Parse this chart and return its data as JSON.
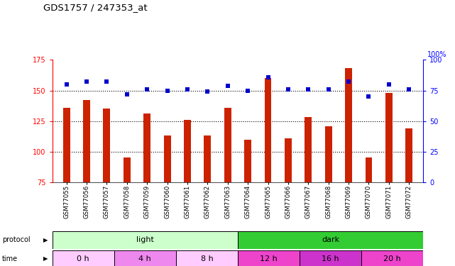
{
  "title": "GDS1757 / 247353_at",
  "samples": [
    "GSM77055",
    "GSM77056",
    "GSM77057",
    "GSM77058",
    "GSM77059",
    "GSM77060",
    "GSM77061",
    "GSM77062",
    "GSM77063",
    "GSM77064",
    "GSM77065",
    "GSM77066",
    "GSM77067",
    "GSM77068",
    "GSM77069",
    "GSM77070",
    "GSM77071",
    "GSM77072"
  ],
  "bar_values": [
    136,
    142,
    135,
    95,
    131,
    113,
    126,
    113,
    136,
    110,
    160,
    111,
    128,
    121,
    168,
    95,
    148,
    119
  ],
  "dot_values": [
    80,
    82,
    82,
    72,
    76,
    75,
    76,
    74,
    79,
    75,
    86,
    76,
    76,
    76,
    82,
    70,
    80,
    76
  ],
  "bar_color": "#cc2200",
  "dot_color": "#0000cc",
  "ymin": 75,
  "ymax": 175,
  "y2min": 0,
  "y2max": 100,
  "yticks": [
    75,
    100,
    125,
    150,
    175
  ],
  "y2ticks": [
    0,
    25,
    50,
    75,
    100
  ],
  "grid_lines": [
    100,
    125,
    150
  ],
  "light_color": "#ccffcc",
  "dark_color": "#33cc33",
  "time_colors": [
    "#ffccff",
    "#ee88ee",
    "#ffccff",
    "#ee44cc",
    "#cc33cc",
    "#ee44cc"
  ],
  "bar_bottom": 75,
  "bar_width": 0.35
}
